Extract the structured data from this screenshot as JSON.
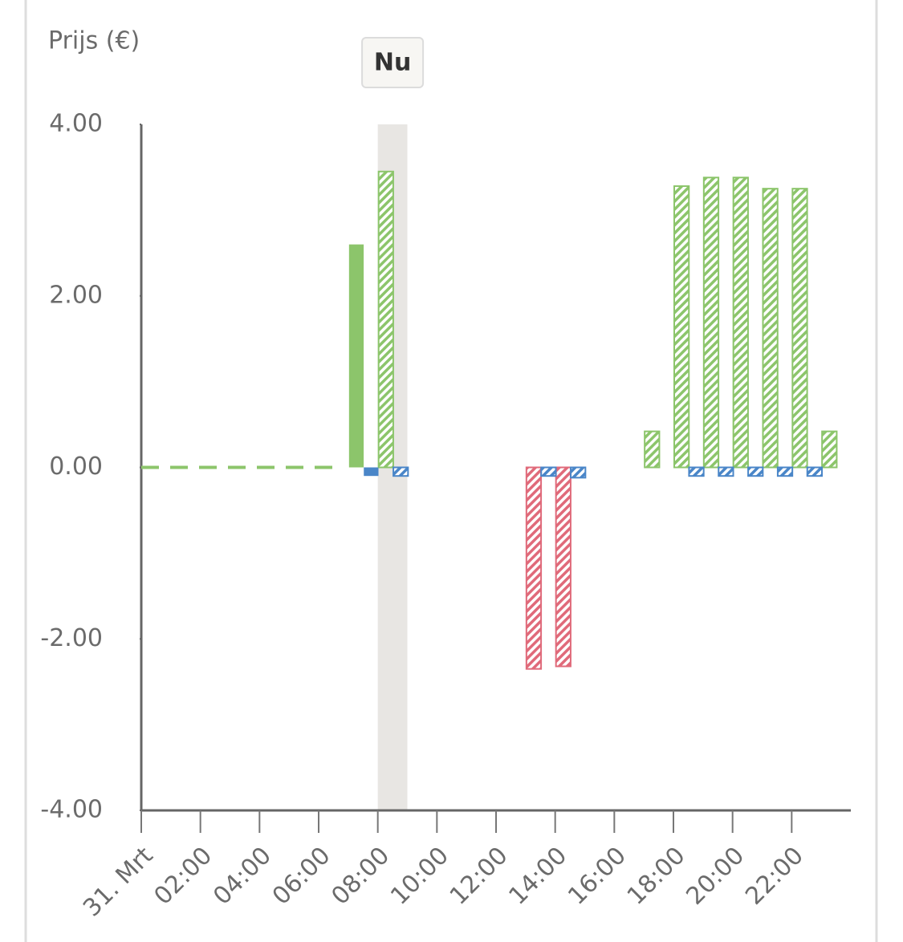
{
  "chart_data": {
    "type": "bar",
    "y_label": "Prijs (€)",
    "x": [
      0,
      1,
      2,
      3,
      4,
      5,
      6,
      7,
      8,
      9,
      10,
      11,
      12,
      13,
      14,
      15,
      16,
      17,
      18,
      19,
      20,
      21,
      22,
      23
    ],
    "xlim": [
      0,
      24
    ],
    "xticks": [
      {
        "value": 0,
        "label": "31. Mrt"
      },
      {
        "value": 2,
        "label": "02:00"
      },
      {
        "value": 4,
        "label": "04:00"
      },
      {
        "value": 6,
        "label": "06:00"
      },
      {
        "value": 8,
        "label": "08:00"
      },
      {
        "value": 10,
        "label": "10:00"
      },
      {
        "value": 12,
        "label": "12:00"
      },
      {
        "value": 14,
        "label": "14:00"
      },
      {
        "value": 16,
        "label": "16:00"
      },
      {
        "value": 18,
        "label": "18:00"
      },
      {
        "value": 20,
        "label": "20:00"
      },
      {
        "value": 22,
        "label": "22:00"
      }
    ],
    "ylim": [
      -4,
      4
    ],
    "yticks": [
      {
        "value": -4,
        "label": "-4.00"
      },
      {
        "value": -2,
        "label": "-2.00"
      },
      {
        "value": 0,
        "label": "0.00"
      },
      {
        "value": 2,
        "label": "2.00"
      },
      {
        "value": 4,
        "label": "4.00"
      }
    ],
    "highlight": {
      "range": [
        8,
        9
      ],
      "label": "Nu"
    },
    "reference_line": {
      "x": [
        0,
        6.6
      ],
      "values": [
        0,
        0
      ],
      "color": "#8cc56b",
      "dashed": true
    },
    "series": [
      {
        "color": "#8cc56b",
        "negative_color": "#e06a7a",
        "hatched": false,
        "offset": 0,
        "values": [
          null,
          null,
          null,
          null,
          null,
          null,
          null,
          2.6,
          null,
          null,
          null,
          null,
          null,
          null,
          null,
          null,
          null,
          null,
          null,
          null,
          null,
          null,
          null,
          null
        ]
      },
      {
        "color": "#8cc56b",
        "negative_color": "#e06a7a",
        "hatched": true,
        "offset": 0,
        "values": [
          null,
          null,
          null,
          null,
          null,
          null,
          null,
          null,
          3.45,
          null,
          null,
          null,
          null,
          -2.35,
          -2.32,
          null,
          null,
          0.42,
          3.28,
          3.38,
          3.38,
          3.25,
          3.25,
          0.42
        ]
      },
      {
        "color": "#4a86c8",
        "negative_color": "#4a86c8",
        "hatched": false,
        "offset": 0.5,
        "values": [
          null,
          null,
          null,
          null,
          null,
          null,
          null,
          -0.1,
          null,
          null,
          null,
          null,
          null,
          null,
          null,
          null,
          null,
          null,
          null,
          null,
          null,
          null,
          null,
          null
        ]
      },
      {
        "color": "#4a86c8",
        "negative_color": "#4a86c8",
        "hatched": true,
        "offset": 0.5,
        "values": [
          null,
          null,
          null,
          null,
          null,
          null,
          null,
          null,
          -0.1,
          null,
          null,
          null,
          null,
          -0.1,
          -0.12,
          null,
          null,
          null,
          -0.1,
          -0.1,
          -0.1,
          -0.1,
          -0.1,
          null
        ]
      }
    ]
  }
}
